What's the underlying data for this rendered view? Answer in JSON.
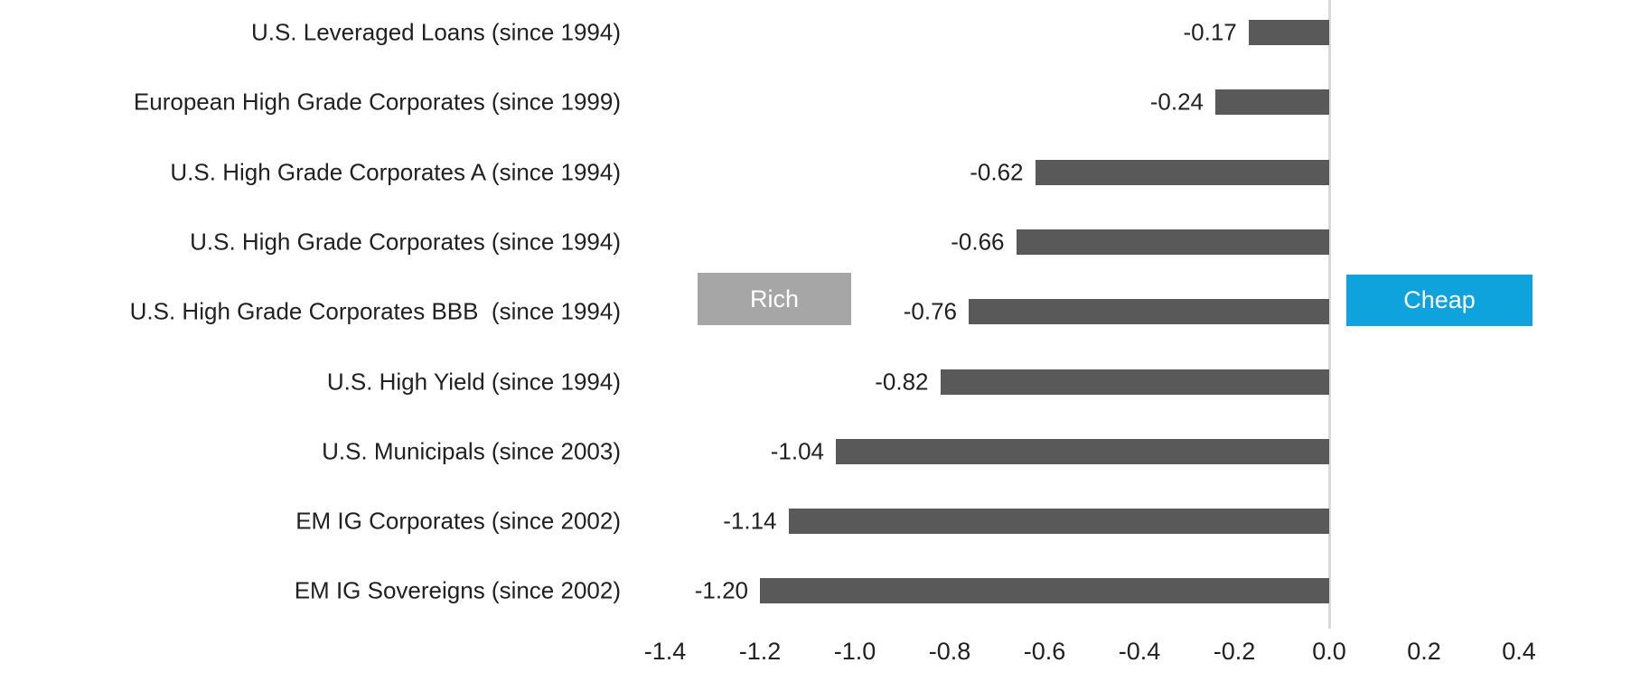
{
  "chart_data": {
    "type": "bar",
    "orientation": "horizontal",
    "title": "",
    "categories": [
      "U.S. Leveraged Loans (since 1994)",
      "European High Grade Corporates (since 1999)",
      "U.S. High Grade Corporates A (since 1994)",
      "U.S. High Grade Corporates (since 1994)",
      "U.S. High Grade Corporates BBB  (since 1994)",
      "U.S. High Yield (since 1994)",
      "U.S. Municipals (since 2003)",
      "EM IG Corporates (since 2002)",
      "EM IG Sovereigns (since 2002)"
    ],
    "values": [
      -0.17,
      -0.24,
      -0.62,
      -0.66,
      -0.76,
      -0.82,
      -1.04,
      -1.14,
      -1.2
    ],
    "value_labels": [
      "-0.17",
      "-0.24",
      "-0.62",
      "-0.66",
      "-0.76",
      "-0.82",
      "-1.04",
      "-1.14",
      "-1.20"
    ],
    "xlim": [
      -1.4,
      0.4
    ],
    "x_ticks": [
      -1.4,
      -1.2,
      -1.0,
      -0.8,
      -0.6,
      -0.4,
      -0.2,
      0.0,
      0.2,
      0.4
    ],
    "x_tick_labels": [
      "-1.4",
      "-1.2",
      "-1.0",
      "-0.8",
      "-0.6",
      "-0.4",
      "-0.2",
      "0.0",
      "0.2",
      "0.4"
    ],
    "bar_color": "#595959",
    "grid": false,
    "legend": null,
    "baseline_at_zero": true
  },
  "annotations": {
    "rich": {
      "text": "Rich",
      "bg": "#a6a6a6"
    },
    "cheap": {
      "text": "Cheap",
      "bg": "#0ea3dc"
    }
  },
  "colors": {
    "bar": "#595959",
    "zero_line": "#d9d9d9",
    "text": "#212121",
    "rich_bg": "#a6a6a6",
    "cheap_bg": "#0ea3dc"
  }
}
